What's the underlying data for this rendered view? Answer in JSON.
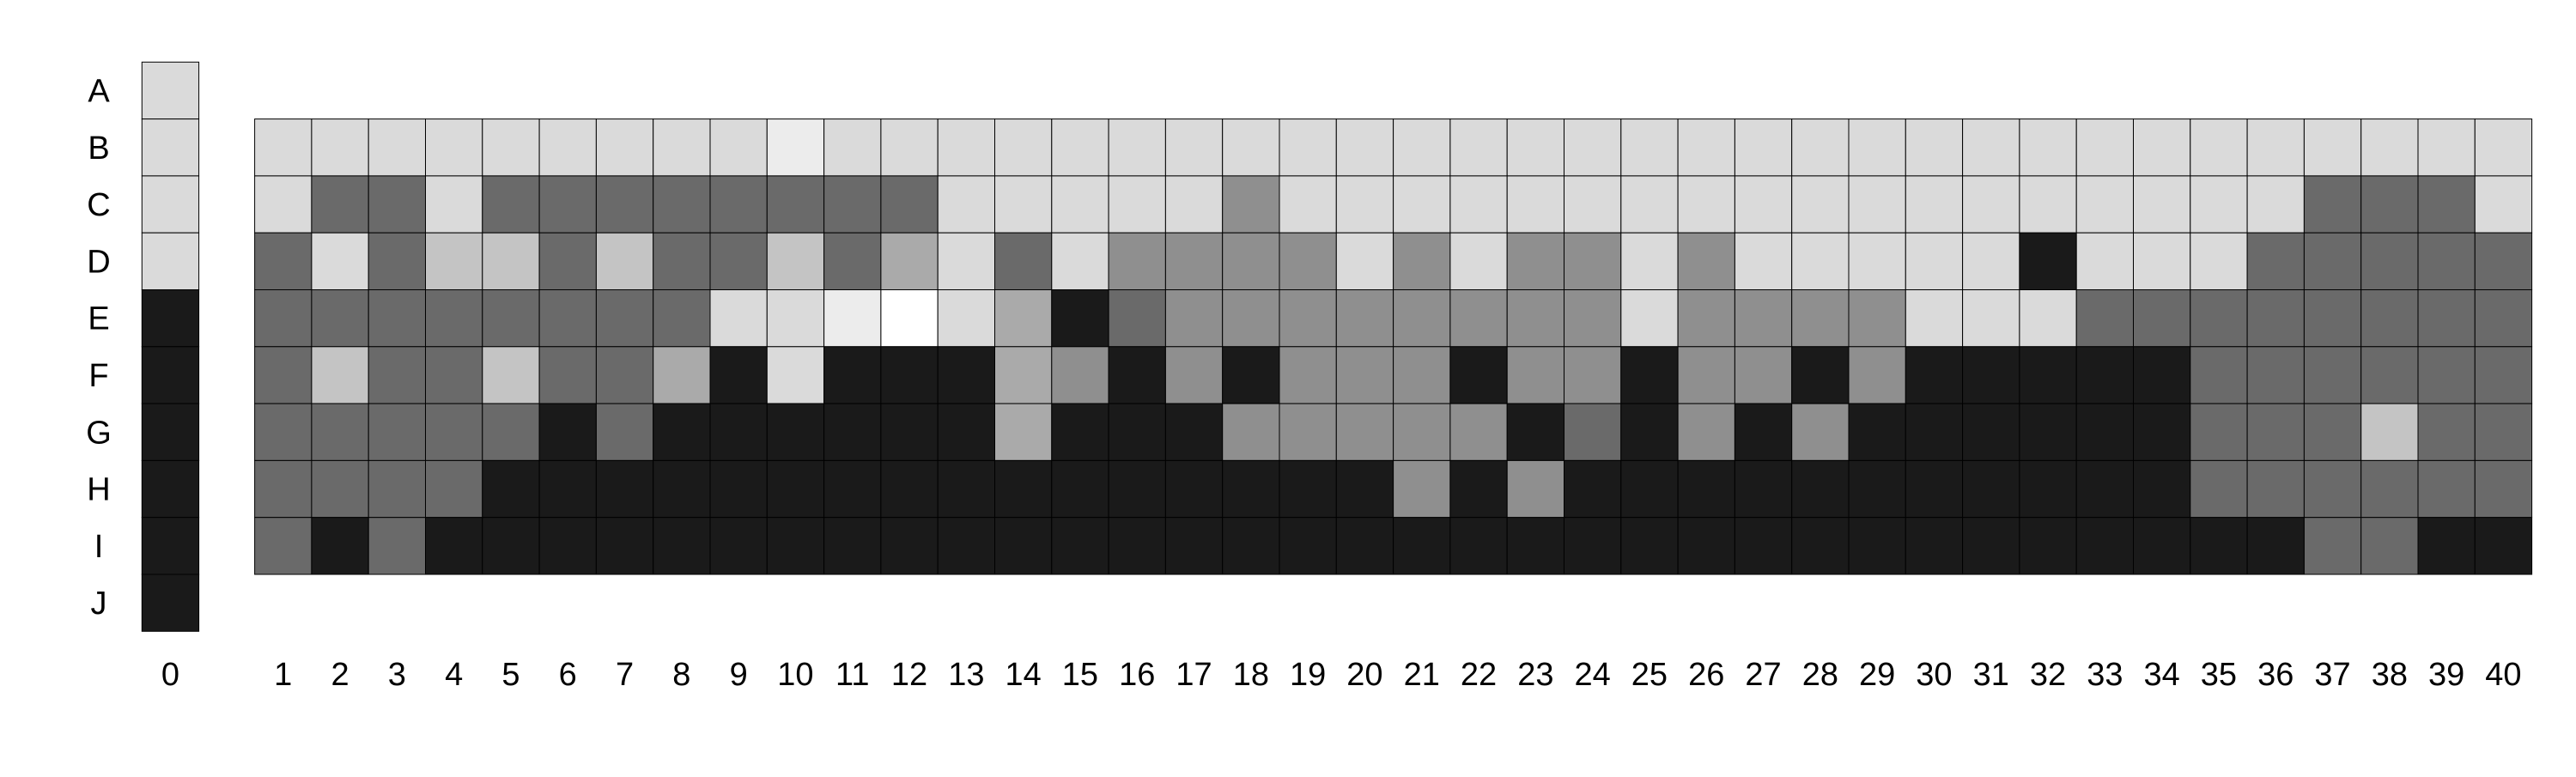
{
  "chart_data": {
    "type": "heatmap",
    "title": "",
    "xlabel": "",
    "ylabel": "",
    "rows": [
      "A",
      "B",
      "C",
      "D",
      "E",
      "F",
      "G",
      "H",
      "I",
      "J"
    ],
    "columns": [
      "0",
      "1",
      "2",
      "3",
      "4",
      "5",
      "6",
      "7",
      "8",
      "9",
      "10",
      "11",
      "12",
      "13",
      "14",
      "15",
      "16",
      "17",
      "18",
      "19",
      "20",
      "21",
      "22",
      "23",
      "24",
      "25",
      "26",
      "27",
      "28",
      "29",
      "30",
      "31",
      "32",
      "33",
      "34",
      "35",
      "36",
      "37",
      "38",
      "39",
      "40"
    ],
    "color_scale": {
      "X": "#1a1a1a",
      "D": "#6a6a6a",
      "M": "#8f8f8f",
      "A": "#aaaaaa",
      "S": "#c4c4c4",
      "L": "#dadada",
      "V": "#ececec",
      "W": "#ffffff"
    },
    "reference_column": [
      "L",
      "L",
      "L",
      "L",
      "X",
      "X",
      "X",
      "X",
      "X",
      "X"
    ],
    "grid_rows": [
      "B",
      "C",
      "D",
      "E",
      "F",
      "G",
      "H",
      "I"
    ],
    "grid_values": [
      [
        "L",
        "L",
        "L",
        "L",
        "L",
        "L",
        "L",
        "L",
        "L",
        "V",
        "L",
        "L",
        "L",
        "L",
        "L",
        "L",
        "L",
        "L",
        "L",
        "L",
        "L",
        "L",
        "L",
        "L",
        "L",
        "L",
        "L",
        "L",
        "L",
        "L",
        "L",
        "L",
        "L",
        "L",
        "L",
        "L",
        "L",
        "L",
        "L",
        "L"
      ],
      [
        "L",
        "D",
        "D",
        "L",
        "D",
        "D",
        "D",
        "D",
        "D",
        "D",
        "D",
        "D",
        "L",
        "L",
        "L",
        "L",
        "L",
        "M",
        "L",
        "L",
        "L",
        "L",
        "L",
        "L",
        "L",
        "L",
        "L",
        "L",
        "L",
        "L",
        "L",
        "L",
        "L",
        "L",
        "L",
        "L",
        "D",
        "D",
        "D",
        "L"
      ],
      [
        "D",
        "L",
        "D",
        "S",
        "S",
        "D",
        "S",
        "D",
        "D",
        "S",
        "D",
        "A",
        "L",
        "D",
        "L",
        "M",
        "M",
        "M",
        "M",
        "L",
        "M",
        "L",
        "M",
        "M",
        "L",
        "M",
        "L",
        "L",
        "L",
        "L",
        "L",
        "X",
        "L",
        "L",
        "L",
        "D",
        "D",
        "D",
        "D",
        "D"
      ],
      [
        "D",
        "D",
        "D",
        "D",
        "D",
        "D",
        "D",
        "D",
        "L",
        "L",
        "V",
        "W",
        "L",
        "A",
        "X",
        "D",
        "M",
        "M",
        "M",
        "M",
        "M",
        "M",
        "M",
        "M",
        "L",
        "M",
        "M",
        "M",
        "M",
        "L",
        "L",
        "L",
        "D",
        "D",
        "D",
        "D",
        "D",
        "D",
        "D",
        "D"
      ],
      [
        "D",
        "S",
        "D",
        "D",
        "S",
        "D",
        "D",
        "A",
        "X",
        "L",
        "X",
        "X",
        "X",
        "A",
        "M",
        "X",
        "M",
        "X",
        "M",
        "M",
        "M",
        "X",
        "M",
        "M",
        "X",
        "M",
        "M",
        "X",
        "M",
        "X",
        "X",
        "X",
        "X",
        "X",
        "D",
        "D",
        "D",
        "D",
        "D",
        "D"
      ],
      [
        "D",
        "D",
        "D",
        "D",
        "D",
        "X",
        "D",
        "X",
        "X",
        "X",
        "X",
        "X",
        "X",
        "A",
        "X",
        "X",
        "X",
        "M",
        "M",
        "M",
        "M",
        "M",
        "X",
        "D",
        "X",
        "M",
        "X",
        "M",
        "X",
        "X",
        "X",
        "X",
        "X",
        "X",
        "D",
        "D",
        "D",
        "S",
        "D",
        "D"
      ],
      [
        "D",
        "D",
        "D",
        "D",
        "X",
        "X",
        "X",
        "X",
        "X",
        "X",
        "X",
        "X",
        "X",
        "X",
        "X",
        "X",
        "X",
        "X",
        "X",
        "X",
        "M",
        "X",
        "M",
        "X",
        "X",
        "X",
        "X",
        "X",
        "X",
        "X",
        "X",
        "X",
        "X",
        "X",
        "D",
        "D",
        "D",
        "D",
        "D",
        "D"
      ],
      [
        "D",
        "X",
        "D",
        "X",
        "X",
        "X",
        "X",
        "X",
        "X",
        "X",
        "X",
        "X",
        "X",
        "X",
        "X",
        "X",
        "X",
        "X",
        "X",
        "X",
        "X",
        "X",
        "X",
        "X",
        "X",
        "X",
        "X",
        "X",
        "X",
        "X",
        "X",
        "X",
        "X",
        "X",
        "X",
        "X",
        "D",
        "D",
        "X",
        "X"
      ]
    ]
  }
}
